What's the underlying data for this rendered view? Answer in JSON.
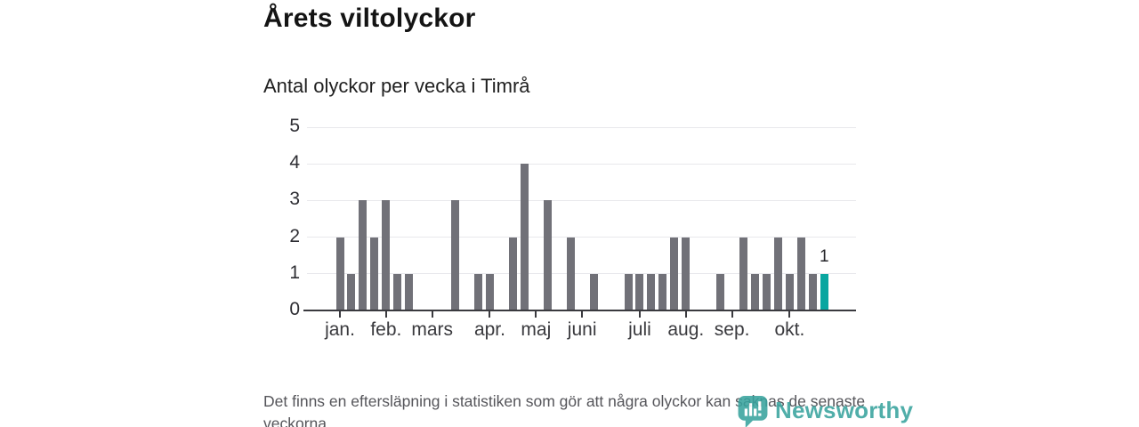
{
  "page": {
    "title": "Årets viltolyckor",
    "subtitle": "Antal olyckor per vecka i Timrå",
    "footer": "Det finns en eftersläpning i statistiken som gör att några olyckor kan saknas de senaste veckorna.",
    "logo_text": "Newsworthy"
  },
  "colors": {
    "bar": "#717178",
    "highlight_bar": "#0aa6a0",
    "axis": "#3a3a3f",
    "grid": "#e8e8ec",
    "logo": "#39a39e"
  },
  "chart_data": {
    "type": "bar",
    "title": "Årets viltolyckor",
    "subtitle": "Antal olyckor per vecka i Timrå",
    "x_unit": "week",
    "values": [
      2,
      1,
      3,
      2,
      3,
      1,
      1,
      0,
      0,
      0,
      3,
      0,
      1,
      1,
      0,
      2,
      4,
      0,
      3,
      0,
      2,
      0,
      1,
      0,
      0,
      1,
      1,
      1,
      1,
      2,
      2,
      0,
      0,
      1,
      0,
      2,
      1,
      1,
      2,
      1,
      2,
      1,
      1
    ],
    "highlight_index": 42,
    "highlight_label": "1",
    "ylim": [
      0,
      5
    ],
    "yticks": [
      0,
      1,
      2,
      3,
      4,
      5
    ],
    "grid": true,
    "legend": "none",
    "month_ticks": [
      {
        "label": "jan.",
        "week": 1
      },
      {
        "label": "feb.",
        "week": 5
      },
      {
        "label": "mars",
        "week": 9
      },
      {
        "label": "apr.",
        "week": 14
      },
      {
        "label": "maj",
        "week": 18
      },
      {
        "label": "juni",
        "week": 22
      },
      {
        "label": "juli",
        "week": 27
      },
      {
        "label": "aug.",
        "week": 31
      },
      {
        "label": "sep.",
        "week": 35
      },
      {
        "label": "okt.",
        "week": 40
      }
    ]
  }
}
